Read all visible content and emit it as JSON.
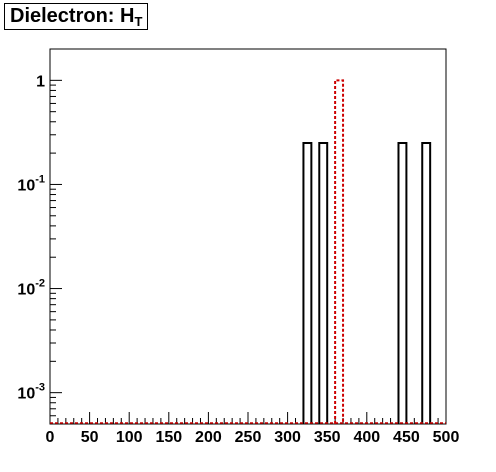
{
  "chart_data": {
    "type": "bar",
    "title_main": "Dielectron: H",
    "title_sub": "T",
    "xlabel": "",
    "ylabel": "",
    "xlim": [
      0,
      500
    ],
    "ylim": [
      0.0005,
      2
    ],
    "yscale": "log",
    "x_ticks": [
      "0",
      "50",
      "100",
      "150",
      "200",
      "250",
      "300",
      "350",
      "400",
      "450",
      "500"
    ],
    "y_ticks": [
      {
        "value": 0.001,
        "base": "10",
        "exp": "-3"
      },
      {
        "value": 0.01,
        "base": "10",
        "exp": "-2"
      },
      {
        "value": 0.1,
        "base": "10",
        "exp": "-1"
      },
      {
        "value": 1,
        "base": "1",
        "exp": ""
      }
    ],
    "bin_width": 10,
    "series": [
      {
        "style": "solid",
        "color": "#000000",
        "bins": [
          {
            "x": 320,
            "y": 0.25
          },
          {
            "x": 340,
            "y": 0.25
          },
          {
            "x": 440,
            "y": 0.25
          },
          {
            "x": 470,
            "y": 0.25
          }
        ]
      },
      {
        "style": "dashed",
        "color": "#cc0000",
        "bins": [
          {
            "x": 360,
            "y": 1.0
          }
        ]
      }
    ],
    "grid": false,
    "legend": "none"
  }
}
